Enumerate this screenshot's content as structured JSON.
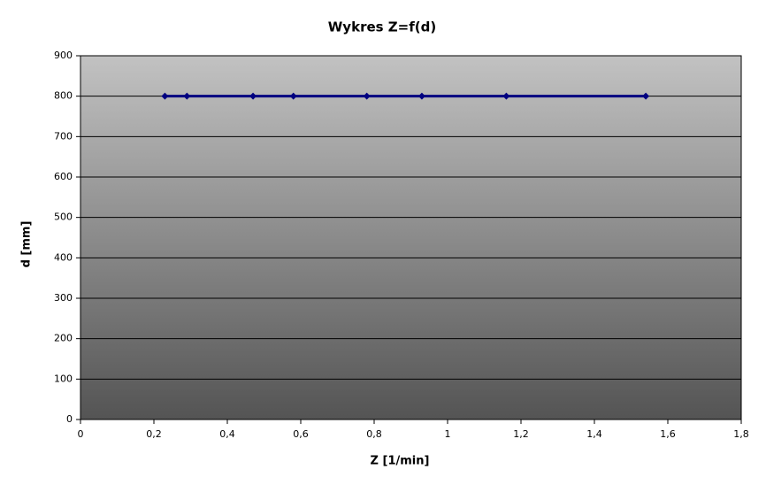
{
  "chart_data": {
    "type": "line",
    "title": "Wykres Z=f(d)",
    "x_label": "Z [1/min]",
    "y_label": "d [mm]",
    "x": [
      0.23,
      0.29,
      0.47,
      0.58,
      0.78,
      0.93,
      1.16,
      1.54
    ],
    "series": [
      {
        "color": "#000080",
        "values": [
          800,
          800,
          800,
          800,
          800,
          800,
          800,
          800
        ]
      }
    ],
    "xlim": [
      0,
      1.8
    ],
    "xticks": [
      0,
      {
        "value": 0.2,
        "label": "0,2"
      },
      {
        "value": 0.4,
        "label": "0,4"
      },
      {
        "value": 0.6,
        "label": "0,6"
      },
      {
        "value": 0.8,
        "label": "0,8"
      },
      1,
      {
        "value": 1.2,
        "label": "1,2"
      },
      {
        "value": 1.4,
        "label": "1,4"
      },
      {
        "value": 1.6,
        "label": "1,6"
      },
      {
        "value": 1.8,
        "label": "1,8"
      }
    ],
    "ylim": [
      0,
      900
    ],
    "yticks": [
      0,
      100,
      200,
      300,
      400,
      500,
      600,
      700,
      800,
      900
    ],
    "grid": true
  }
}
